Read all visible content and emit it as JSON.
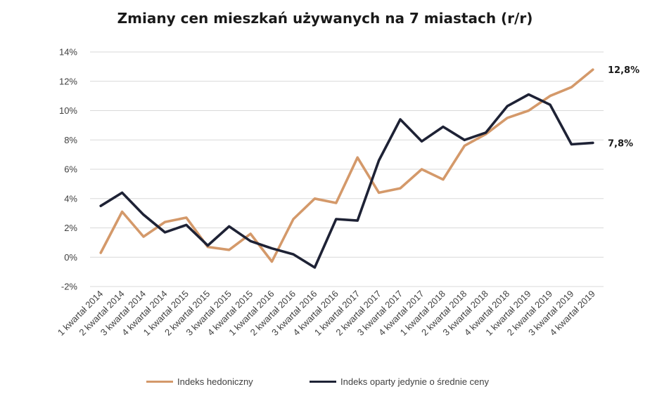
{
  "chart_data": {
    "type": "line",
    "title": "Zmiany cen mieszkań używanych na 7 miastach (r/r)",
    "xlabel": "",
    "ylabel": "",
    "ylim": [
      -2,
      14
    ],
    "y_ticks": [
      "-2%",
      "0%",
      "2%",
      "4%",
      "6%",
      "8%",
      "10%",
      "12%",
      "14%"
    ],
    "grid": true,
    "legend_position": "bottom",
    "categories": [
      "1 kwartał 2014",
      "2 kwartał 2014",
      "3 kwartał 2014",
      "4 kwartał 2014",
      "1 kwartał 2015",
      "2 kwartał 2015",
      "3 kwartał 2015",
      "4 kwartał 2015",
      "1 kwartał 2016",
      "2 kwartał 2016",
      "3 kwartał 2016",
      "4 kwartał 2016",
      "1 kwartał 2017",
      "2 kwartał 2017",
      "3 kwartał 2017",
      "4 kwartał 2017",
      "1 kwartał 2018",
      "2 kwartał 2018",
      "3 kwartał 2018",
      "4 kwartał 2018",
      "1 kwartał 2019",
      "2 kwartał 2019",
      "3 kwartał 2019",
      "4 kwartał 2019"
    ],
    "series": [
      {
        "name": "Indeks hedoniczny",
        "color": "#d4996a",
        "values": [
          0.3,
          3.1,
          1.4,
          2.4,
          2.7,
          0.7,
          0.5,
          1.6,
          -0.3,
          2.6,
          4.0,
          3.7,
          6.8,
          4.4,
          4.7,
          6.0,
          5.3,
          7.6,
          8.4,
          9.5,
          10.0,
          11.0,
          11.6,
          12.8
        ],
        "end_label": "12,8%"
      },
      {
        "name": "Indeks oparty jedynie o średnie ceny",
        "color": "#1e2235",
        "values": [
          3.5,
          4.4,
          2.9,
          1.7,
          2.2,
          0.8,
          2.1,
          1.1,
          0.6,
          0.2,
          -0.7,
          2.6,
          2.5,
          6.6,
          9.4,
          7.9,
          8.9,
          8.0,
          8.5,
          10.3,
          11.1,
          10.4,
          7.7,
          7.8
        ],
        "end_label": "7,8%"
      }
    ]
  }
}
